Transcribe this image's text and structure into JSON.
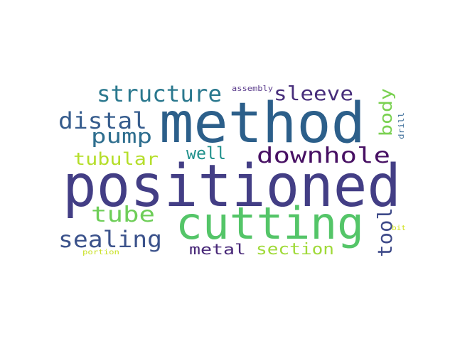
{
  "words": {
    "positioned": {
      "text": "positioned",
      "color": "#433e85"
    },
    "method": {
      "text": "method",
      "color": "#2c5f8a"
    },
    "cutting": {
      "text": "cutting",
      "color": "#54c568"
    },
    "structure": {
      "text": "structure",
      "color": "#2a788e"
    },
    "sleeve": {
      "text": "sleeve",
      "color": "#472d7b"
    },
    "distal": {
      "text": "distal",
      "color": "#365c8d"
    },
    "pump": {
      "text": "pump",
      "color": "#2e6e8e"
    },
    "downhole": {
      "text": "downhole",
      "color": "#471063"
    },
    "tubular": {
      "text": "tubular",
      "color": "#b5de2b"
    },
    "well": {
      "text": "well",
      "color": "#21918c"
    },
    "tube": {
      "text": "tube",
      "color": "#6ece58"
    },
    "sealing": {
      "text": "sealing",
      "color": "#3b528b"
    },
    "metal": {
      "text": "metal",
      "color": "#482878"
    },
    "section": {
      "text": "section",
      "color": "#a0da39"
    },
    "tool": {
      "text": "tool",
      "color": "#3e4a89"
    },
    "body": {
      "text": "body",
      "color": "#7ad151"
    },
    "assembly": {
      "text": "assembly",
      "color": "#5b3c8c"
    },
    "drill": {
      "text": "drill",
      "color": "#3f6f9a"
    },
    "bit": {
      "text": "bit",
      "color": "#d0e11c"
    },
    "portion": {
      "text": "portion",
      "color": "#c8e020"
    }
  }
}
